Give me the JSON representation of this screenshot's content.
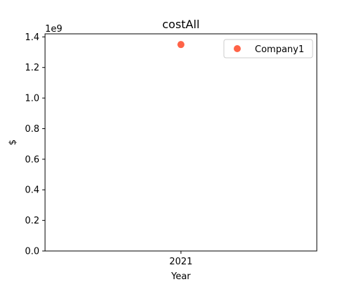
{
  "chart_data": {
    "type": "scatter",
    "title": "costAll",
    "xlabel": "Year",
    "ylabel": "$",
    "y_offset_label": "1e9",
    "categories": [
      "2021"
    ],
    "series": [
      {
        "name": "Company1",
        "color": "#ff6347",
        "values": [
          1.35
        ]
      }
    ],
    "ylim": [
      0.0,
      1.42
    ],
    "yticks": [
      0.0,
      0.2,
      0.4,
      0.6,
      0.8,
      1.0,
      1.2,
      1.4
    ],
    "ytick_labels": [
      "0.0",
      "0.2",
      "0.4",
      "0.6",
      "0.8",
      "1.0",
      "1.2",
      "1.4"
    ],
    "legend_position": "top-right"
  }
}
